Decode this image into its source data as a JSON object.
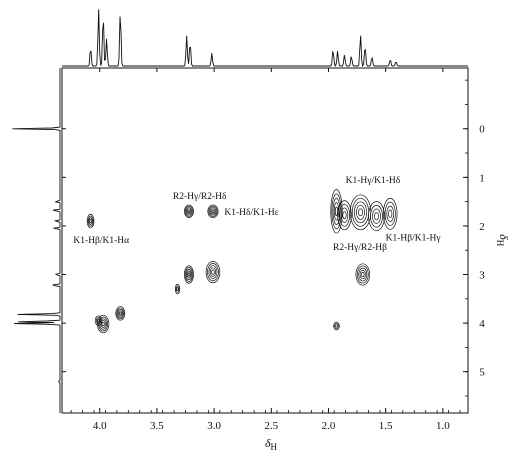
{
  "chart_data": {
    "type": "scatter",
    "x": {
      "label_symbol": "δ",
      "label_subscript": "H",
      "range": [
        4.33,
        0.78
      ],
      "reversed": true,
      "ticks": [
        4.0,
        3.5,
        3.0,
        2.5,
        2.0,
        1.5,
        1.0
      ],
      "tick_labels": [
        "4.0",
        "3.5",
        "3.0",
        "2.5",
        "2.0",
        "1.5",
        "1.0"
      ]
    },
    "y": {
      "label_symbol": "δ",
      "label_subscript": "H",
      "range": [
        -1.25,
        5.85
      ],
      "reversed": true,
      "ticks": [
        0,
        1,
        2,
        3,
        4,
        5
      ],
      "tick_labels": [
        "0",
        "1",
        "2",
        "3",
        "4",
        "5"
      ]
    },
    "grid": false,
    "projection_1d_top": {
      "peaks": [
        {
          "ppm": 4.08,
          "height": 0.32
        },
        {
          "ppm": 4.01,
          "height": 1.0
        },
        {
          "ppm": 3.97,
          "height": 0.9
        },
        {
          "ppm": 3.94,
          "height": 0.48
        },
        {
          "ppm": 3.82,
          "height": 0.97
        },
        {
          "ppm": 3.24,
          "height": 0.52
        },
        {
          "ppm": 3.21,
          "height": 0.42
        },
        {
          "ppm": 3.02,
          "height": 0.22
        },
        {
          "ppm": 1.96,
          "height": 0.3
        },
        {
          "ppm": 1.92,
          "height": 0.26
        },
        {
          "ppm": 1.86,
          "height": 0.2
        },
        {
          "ppm": 1.8,
          "height": 0.18
        },
        {
          "ppm": 1.72,
          "height": 0.55
        },
        {
          "ppm": 1.68,
          "height": 0.36
        },
        {
          "ppm": 1.62,
          "height": 0.16
        },
        {
          "ppm": 1.46,
          "height": 0.12
        },
        {
          "ppm": 1.41,
          "height": 0.08
        }
      ]
    },
    "projection_1d_left": {
      "peaks": [
        {
          "ppm": 0.0,
          "height": 1.0
        },
        {
          "ppm": 1.5,
          "height": 0.12
        },
        {
          "ppm": 1.68,
          "height": 0.18
        },
        {
          "ppm": 1.9,
          "height": 0.12
        },
        {
          "ppm": 2.05,
          "height": 0.15
        },
        {
          "ppm": 3.0,
          "height": 0.12
        },
        {
          "ppm": 3.22,
          "height": 0.22
        },
        {
          "ppm": 3.82,
          "height": 0.9
        },
        {
          "ppm": 3.97,
          "height": 0.95
        },
        {
          "ppm": 4.01,
          "height": 1.0
        },
        {
          "ppm": 5.2,
          "height": 0.04
        }
      ]
    },
    "cross_peaks": [
      {
        "x": 4.08,
        "y": 1.9,
        "rx": 0.03,
        "ry": 0.14,
        "rings": 4
      },
      {
        "x": 3.22,
        "y": 1.7,
        "rx": 0.04,
        "ry": 0.13,
        "rings": 5
      },
      {
        "x": 3.01,
        "y": 1.7,
        "rx": 0.045,
        "ry": 0.13,
        "rings": 5
      },
      {
        "x": 3.22,
        "y": 3.0,
        "rx": 0.04,
        "ry": 0.18,
        "rings": 5
      },
      {
        "x": 3.01,
        "y": 2.95,
        "rx": 0.06,
        "ry": 0.22,
        "rings": 5
      },
      {
        "x": 3.32,
        "y": 3.3,
        "rx": 0.02,
        "ry": 0.1,
        "rings": 3
      },
      {
        "x": 1.93,
        "y": 1.7,
        "rx": 0.05,
        "ry": 0.45,
        "rings": 5
      },
      {
        "x": 1.86,
        "y": 1.78,
        "rx": 0.06,
        "ry": 0.3,
        "rings": 4
      },
      {
        "x": 1.72,
        "y": 1.72,
        "rx": 0.09,
        "ry": 0.36,
        "rings": 5
      },
      {
        "x": 1.58,
        "y": 1.8,
        "rx": 0.07,
        "ry": 0.3,
        "rings": 4
      },
      {
        "x": 1.46,
        "y": 1.75,
        "rx": 0.06,
        "ry": 0.32,
        "rings": 4
      },
      {
        "x": 1.7,
        "y": 3.0,
        "rx": 0.06,
        "ry": 0.22,
        "rings": 5
      },
      {
        "x": 1.93,
        "y": 4.06,
        "rx": 0.025,
        "ry": 0.08,
        "rings": 3
      },
      {
        "x": 3.82,
        "y": 3.8,
        "rx": 0.04,
        "ry": 0.14,
        "rings": 5
      },
      {
        "x": 3.97,
        "y": 4.02,
        "rx": 0.05,
        "ry": 0.18,
        "rings": 5
      },
      {
        "x": 4.01,
        "y": 3.95,
        "rx": 0.03,
        "ry": 0.1,
        "rings": 3
      }
    ],
    "annotations": [
      {
        "text": "R2-Hγ/R2-Hδ",
        "x": 3.36,
        "y": 1.45
      },
      {
        "text": "K1-Hδ/K1-Hε",
        "x": 2.91,
        "y": 1.78
      },
      {
        "text": "K1-Hβ/K1-Hα",
        "x": 4.23,
        "y": 2.35
      },
      {
        "text": "K1-Hγ/K1-Hδ",
        "x": 1.85,
        "y": 1.12
      },
      {
        "text": "R2-Hγ/R2-Hβ",
        "x": 1.96,
        "y": 2.5
      },
      {
        "text": "K1-Hβ/K1-Hγ",
        "x": 1.5,
        "y": 2.3
      }
    ]
  }
}
